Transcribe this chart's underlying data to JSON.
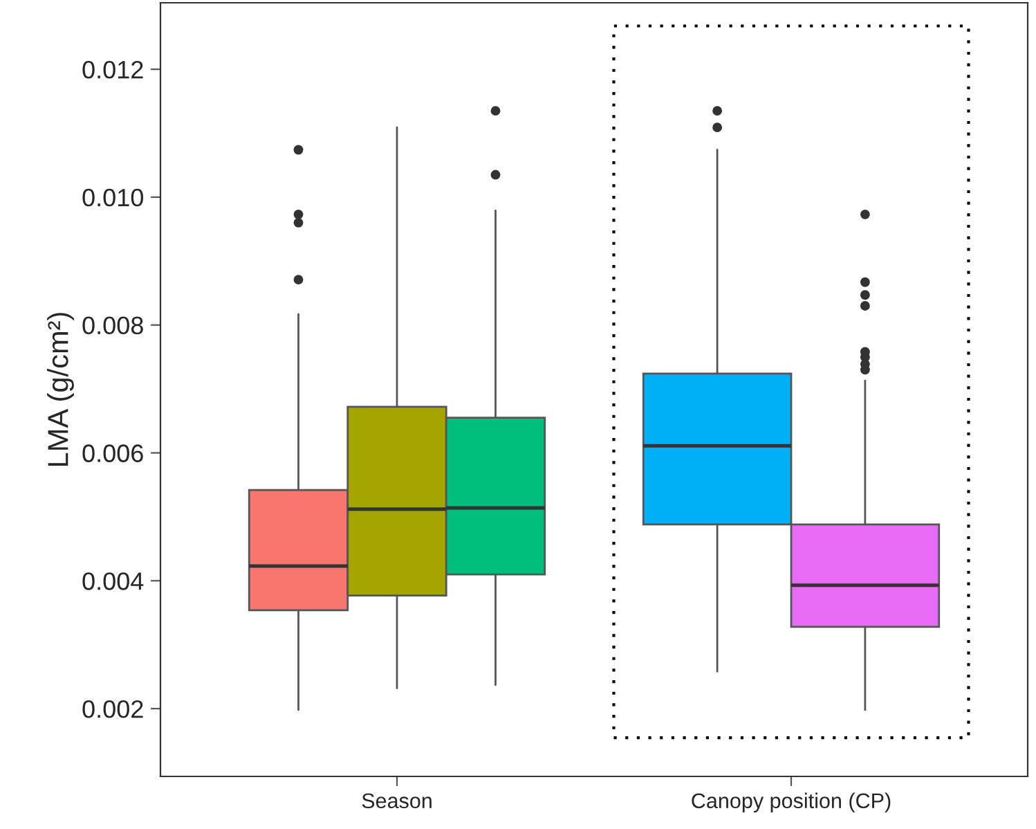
{
  "chart_data": {
    "type": "box",
    "ylabel": "LMA (g/cm²)",
    "categories": [
      "Season",
      "Canopy position (CP)"
    ],
    "series": [
      {
        "color": "#f8766d",
        "boxes": [
          {
            "low": 0.00198,
            "q1": 0.00354,
            "median": 0.00423,
            "q3": 0.00542,
            "high": 0.00817,
            "outliers": [
              0.01074,
              0.00973,
              0.0096,
              0.00871
            ]
          },
          null
        ]
      },
      {
        "color": "#a3a500",
        "boxes": [
          {
            "low": 0.00232,
            "q1": 0.00377,
            "median": 0.00512,
            "q3": 0.00672,
            "high": 0.01109
          },
          null
        ]
      },
      {
        "color": "#00bf7d",
        "boxes": [
          {
            "low": 0.00237,
            "q1": 0.0041,
            "median": 0.00514,
            "q3": 0.00655,
            "high": 0.00979,
            "outliers": [
              0.01135,
              0.01035
            ]
          },
          null
        ]
      },
      {
        "color": "#00b0f6",
        "boxes": [
          null,
          {
            "low": 0.00258,
            "q1": 0.00488,
            "median": 0.00611,
            "q3": 0.00724,
            "high": 0.01074,
            "outliers": [
              0.01135,
              0.01109
            ]
          }
        ]
      },
      {
        "color": "#e76bf3",
        "boxes": [
          null,
          {
            "low": 0.00198,
            "q1": 0.00328,
            "median": 0.00393,
            "q3": 0.00488,
            "high": 0.00713,
            "outliers": [
              0.00973,
              0.00867,
              0.00847,
              0.0083,
              0.00758,
              0.0075,
              0.00739,
              0.0073
            ]
          }
        ]
      }
    ],
    "ylim": [
      0.00094,
      0.01304
    ],
    "yticks": [
      0.002,
      0.004,
      0.006,
      0.008,
      {
        "value": 0.01,
        "label": "0.010"
      },
      0.012
    ],
    "grid": false,
    "legend": false
  }
}
